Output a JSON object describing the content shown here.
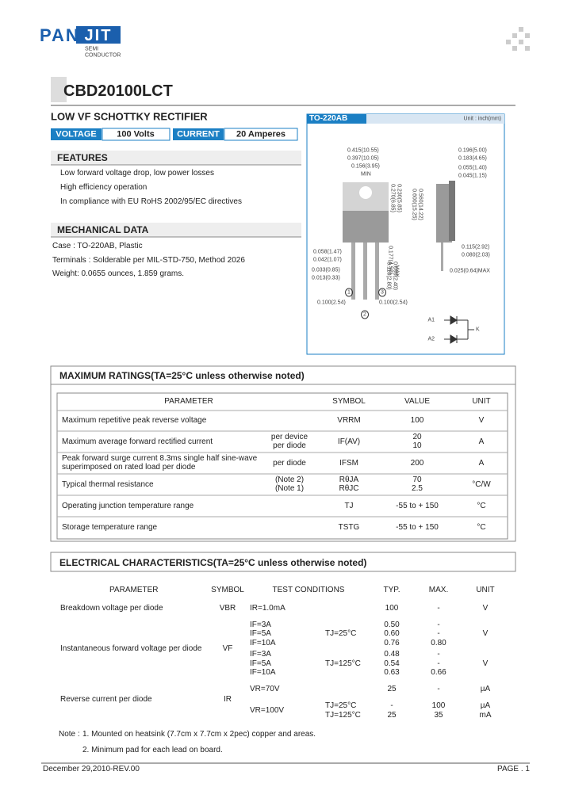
{
  "header": {
    "logo_left": "PAN",
    "logo_right": "JIT",
    "logo_sub": [
      "SEMI",
      "CONDUCTOR"
    ],
    "part_number": "CBD20100LCT",
    "subtitle": "LOW VF SCHOTTKY RECTIFIER"
  },
  "specs": {
    "voltage_label": "VOLTAGE",
    "voltage_value": "100 Volts",
    "current_label": "CURRENT",
    "current_value": "20 Amperes"
  },
  "package": {
    "name": "TO-220AB",
    "unit": "Unit : inch(mm)",
    "dimensions": [
      "0.415(10.55)",
      "0.397(10.05)",
      "0.156(3.95)",
      "MIN",
      "0.196(5.00)",
      "0.183(4.65)",
      "0.055(1.40)",
      "0.045(1.15)",
      "0.058(1.47)",
      "0.042(1.07)",
      "0.033(0.85)",
      "0.013(0.33)",
      "0.100(2.54)",
      "0.100(2.54)",
      "0.115(2.92)",
      "0.080(2.03)",
      "0.025(0.64)MAX"
    ],
    "vertical_dimensions": [
      "0.270(6.85)",
      "0.230(5.85)",
      "0.600(15.25)",
      "0.560(14.22)",
      "0.177(4.50)",
      "MAX",
      "0.110(2.80)",
      "0.095(2.40)"
    ],
    "pins": [
      "1",
      "2",
      "3"
    ],
    "circuit": [
      "A1",
      "A2",
      "K"
    ]
  },
  "features": {
    "title": "FEATURES",
    "items": [
      "Low forward voltage drop, low power losses",
      "High efficiency operation",
      "In compliance with EU RoHS 2002/95/EC directives"
    ]
  },
  "mechanical": {
    "title": "MECHANICAL DATA",
    "items": [
      "Case : TO-220AB, Plastic",
      "Terminals : Solderable per MIL-STD-750, Method 2026",
      "Weight: 0.0655 ounces, 1.859 grams."
    ]
  },
  "max_ratings": {
    "title": "MAXIMUM RATINGS(TA=25°C unless otherwise noted)",
    "headers": [
      "PARAMETER",
      "SYMBOL",
      "VALUE",
      "UNIT"
    ],
    "rows": [
      {
        "parameter": [
          "Maximum repetitive peak reverse voltage"
        ],
        "condition": [],
        "symbol": [
          "VRRM"
        ],
        "value": [
          "100"
        ],
        "unit": "V"
      },
      {
        "parameter": [
          "Maximum average forward rectified current"
        ],
        "condition": [
          "per device",
          "per diode"
        ],
        "symbol": [
          "IF(AV)"
        ],
        "value": [
          "20",
          "10"
        ],
        "unit": "A"
      },
      {
        "parameter": [
          "Peak forward surge current 8.3ms single half sine-wave",
          "superimposed on rated load per diode"
        ],
        "condition": [
          "per diode"
        ],
        "symbol": [
          "IFSM"
        ],
        "value": [
          "200"
        ],
        "unit": "A"
      },
      {
        "parameter": [
          "Typical thermal resistance"
        ],
        "condition": [
          "(Note 2)",
          "(Note 1)"
        ],
        "symbol": [
          "RθJA",
          "RθJC"
        ],
        "value": [
          "70",
          "2.5"
        ],
        "unit": "°C/W"
      },
      {
        "parameter": [
          "Operating junction temperature range"
        ],
        "condition": [],
        "symbol": [
          "TJ"
        ],
        "value": [
          "-55 to + 150"
        ],
        "unit": "°C"
      },
      {
        "parameter": [
          "Storage temperature range"
        ],
        "condition": [],
        "symbol": [
          "TSTG"
        ],
        "value": [
          "-55 to + 150"
        ],
        "unit": "°C"
      }
    ]
  },
  "electrical": {
    "title": "ELECTRICAL CHARACTERISTICS(TA=25°C unless otherwise noted)",
    "headers": [
      "PARAMETER",
      "SYMBOL",
      "TEST CONDITIONS",
      "TYP.",
      "MAX.",
      "UNIT"
    ],
    "rows": [
      {
        "parameter": "Breakdown voltage per diode",
        "symbol": "VBR",
        "condition": [
          "IR=1.0mA"
        ],
        "temperature": [],
        "typ": [
          "100"
        ],
        "max": [
          "-"
        ],
        "unit": [
          "V"
        ]
      },
      {
        "parameter": "Instantaneous forward voltage per diode",
        "symbol": "VF",
        "condition": [
          "IF=3A",
          "IF=5A",
          "IF=10A",
          "IF=3A",
          "IF=5A",
          "IF=10A"
        ],
        "temperature": [
          "TJ=25°C",
          "TJ=125°C"
        ],
        "typ": [
          "0.50",
          "0.60",
          "0.76",
          "0.48",
          "0.54",
          "0.63"
        ],
        "max": [
          "-",
          "-",
          "0.80",
          "-",
          "-",
          "0.66"
        ],
        "unit": [
          "V",
          "V"
        ]
      },
      {
        "parameter": "Reverse current per diode",
        "symbol": "IR",
        "condition": [
          "VR=70V",
          "VR=100V"
        ],
        "temperature": [
          "TJ=25°C",
          "TJ=125°C"
        ],
        "typ": [
          "25",
          "-",
          "25"
        ],
        "max": [
          "-",
          "100",
          "35"
        ],
        "unit": [
          "µA",
          "µA",
          "mA"
        ]
      }
    ]
  },
  "notes": {
    "label": "Note :",
    "items": [
      "1. Mounted on heatsink (7.7cm x 7.7cm x 2pec) copper and areas.",
      "2. Minimum pad for each lead on board."
    ]
  },
  "footer": {
    "date": "December 29,2010-REV.00",
    "page": "PAGE . 1"
  }
}
